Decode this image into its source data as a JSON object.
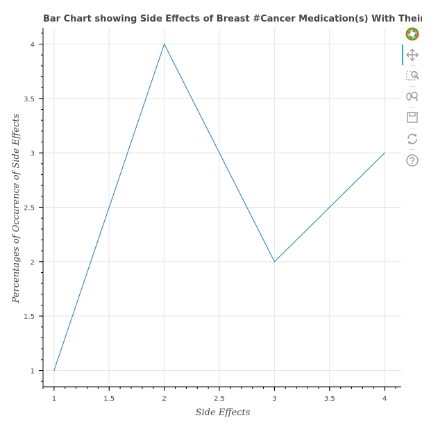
{
  "chart_data": {
    "type": "line",
    "title": "Bar Chart showing Side Effects of Breast #Cancer Medication(s) With Their Corresponding Percentage Occurence",
    "xlabel": "Side Effects",
    "ylabel": "Percentages of Occurence of Side Effects",
    "x": [
      1,
      2,
      3,
      4
    ],
    "series": [
      {
        "values": [
          1,
          4,
          2,
          3
        ],
        "color": "#1f77b4"
      }
    ],
    "xlim": [
      0.9,
      4.15
    ],
    "ylim": [
      0.85,
      4.15
    ],
    "x_ticks": [
      1,
      1.5,
      2,
      2.5,
      3,
      3.5,
      4
    ],
    "x_tick_labels": [
      "1",
      "1.5",
      "2",
      "2.5",
      "3",
      "3.5",
      "4"
    ],
    "y_ticks": [
      1,
      1.5,
      2,
      2.5,
      3,
      3.5,
      4
    ],
    "y_tick_labels": [
      "1",
      "1.5",
      "2",
      "2.5",
      "3",
      "3.5",
      "4"
    ],
    "grid": true
  },
  "toolbar": {
    "tools": [
      {
        "icon": "bokeh-logo-icon",
        "name": "bokeh-logo",
        "interactable": false
      },
      {
        "icon": "pan-icon",
        "name": "pan-tool",
        "interactable": true,
        "active": true
      },
      {
        "icon": "box-zoom-icon",
        "name": "box-zoom-tool",
        "interactable": true
      },
      {
        "icon": "wheel-zoom-icon",
        "name": "wheel-zoom-tool",
        "interactable": true
      },
      {
        "icon": "save-icon",
        "name": "save-tool",
        "interactable": true
      },
      {
        "icon": "reset-icon",
        "name": "reset-tool",
        "interactable": true
      },
      {
        "icon": "help-icon",
        "name": "help-tool",
        "interactable": true
      }
    ]
  }
}
